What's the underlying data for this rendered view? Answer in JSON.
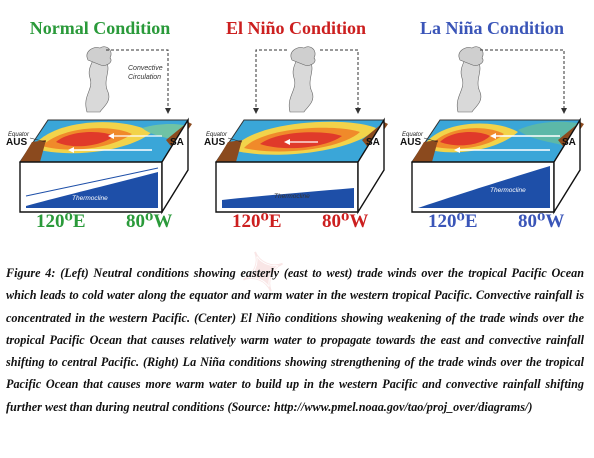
{
  "panels": [
    {
      "title": "Normal Condition",
      "convective_label_line1": "Convective",
      "convective_label_line2": "Circulation",
      "equator_label": "Equator",
      "left_label": "AUS",
      "right_label": "SA",
      "thermocline_label": "Thermocline",
      "lon_left": "120⁰E",
      "lon_right": "80⁰W",
      "title_color": "#2a9a3a"
    },
    {
      "title": "El Niño Condition",
      "equator_label": "Equator",
      "left_label": "AUS",
      "right_label": "SA",
      "thermocline_label": "Thermocline",
      "lon_left": "120⁰E",
      "lon_right": "80⁰W",
      "title_color": "#cc1f1f"
    },
    {
      "title": "La Niña Condition",
      "equator_label": "Equator",
      "left_label": "AUS",
      "right_label": "SA",
      "thermocline_label": "Thermocline",
      "lon_left": "120⁰E",
      "lon_right": "80⁰W",
      "title_color": "#3a55b8"
    }
  ],
  "caption": "Figure 4: (Left) Neutral conditions showing easterly (east to west) trade winds over the tropical Pacific Ocean which leads to cold water along the equator and warm water in the western tropical Pacific. Convective rainfall is concentrated in the western Pacific. (Center) El Niño conditions showing weakening of the trade winds over the tropical Pacific Ocean that causes relatively warm water to propagate towards the east and convective rainfall shifting to central Pacific. (Right) La Niña conditions showing strengthening of the trade winds over the tropical Pacific Ocean that causes more warm water to build up in the western Pacific and convective rainfall shifting further west than during neutral conditions (Source: http://www.pmel.noaa.gov/tao/proj_over/diagrams/)"
}
